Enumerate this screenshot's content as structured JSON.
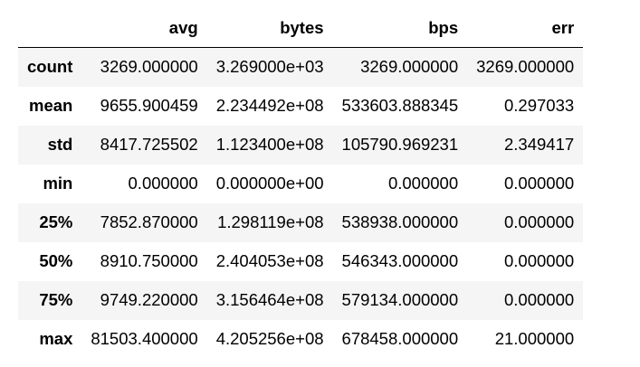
{
  "table": {
    "columns": [
      "",
      "avg",
      "bytes",
      "bps",
      "err"
    ],
    "rows": [
      {
        "label": "count",
        "values": [
          "3269.000000",
          "3.269000e+03",
          "3269.000000",
          "3269.000000"
        ]
      },
      {
        "label": "mean",
        "values": [
          "9655.900459",
          "2.234492e+08",
          "533603.888345",
          "0.297033"
        ]
      },
      {
        "label": "std",
        "values": [
          "8417.725502",
          "1.123400e+08",
          "105790.969231",
          "2.349417"
        ]
      },
      {
        "label": "min",
        "values": [
          "0.000000",
          "0.000000e+00",
          "0.000000",
          "0.000000"
        ]
      },
      {
        "label": "25%",
        "values": [
          "7852.870000",
          "1.298119e+08",
          "538938.000000",
          "0.000000"
        ]
      },
      {
        "label": "50%",
        "values": [
          "8910.750000",
          "2.404053e+08",
          "546343.000000",
          "0.000000"
        ]
      },
      {
        "label": "75%",
        "values": [
          "9749.220000",
          "3.156464e+08",
          "579134.000000",
          "0.000000"
        ]
      },
      {
        "label": "max",
        "values": [
          "81503.400000",
          "4.205256e+08",
          "678458.000000",
          "21.000000"
        ]
      }
    ]
  }
}
